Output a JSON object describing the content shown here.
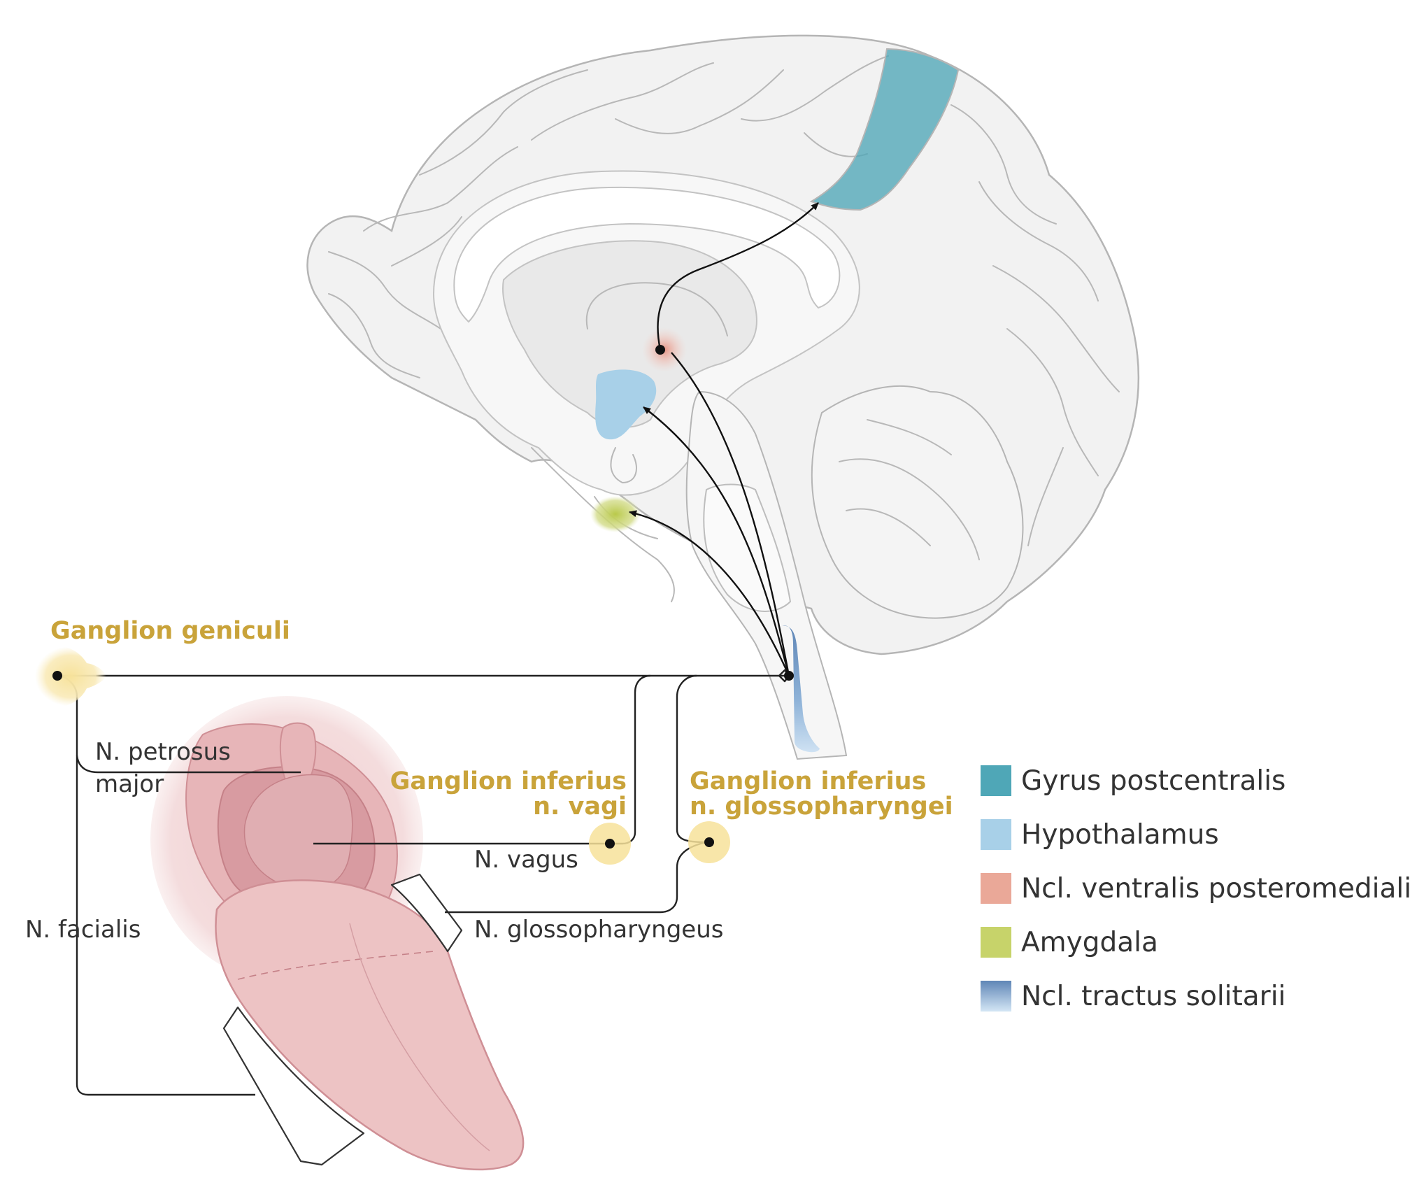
{
  "colors": {
    "gyrus_postcentralis": "#4fa7b7",
    "hypothalamus": "#a8d0e8",
    "ncl_vpm": "#eaa898",
    "amygdala": "#c7d36a",
    "ncl_tractus_solitarii": "#5f86b6",
    "ganglion": "#f7e6a6",
    "label_gold": "#c9a33a",
    "tongue": "#edc3c4"
  },
  "labels": {
    "ganglion_geniculi": "Ganglion geniculi",
    "n_petrosus_major_1": "N. petrosus",
    "n_petrosus_major_2": "major",
    "n_facialis": "N. facialis",
    "ganglion_inferius_vagi_1": "Ganglion inferius",
    "ganglion_inferius_vagi_2": "n. vagi",
    "ganglion_inferius_glosso_1": "Ganglion inferius",
    "ganglion_inferius_glosso_2": "n. glossopharyngei",
    "n_vagus": "N. vagus",
    "n_glossopharyngeus": "N. glossopharyngeus"
  },
  "legend": [
    {
      "label": "Gyrus postcentralis",
      "color": "#4fa7b7"
    },
    {
      "label": "Hypothalamus",
      "color": "#a8d0e8"
    },
    {
      "label": "Ncl. ventralis posteromedialis",
      "color": "#eaa898"
    },
    {
      "label": "Amygdala",
      "color": "#c7d36a"
    },
    {
      "label": "Ncl. tractus solitarii",
      "color": "#5f86b6"
    }
  ]
}
